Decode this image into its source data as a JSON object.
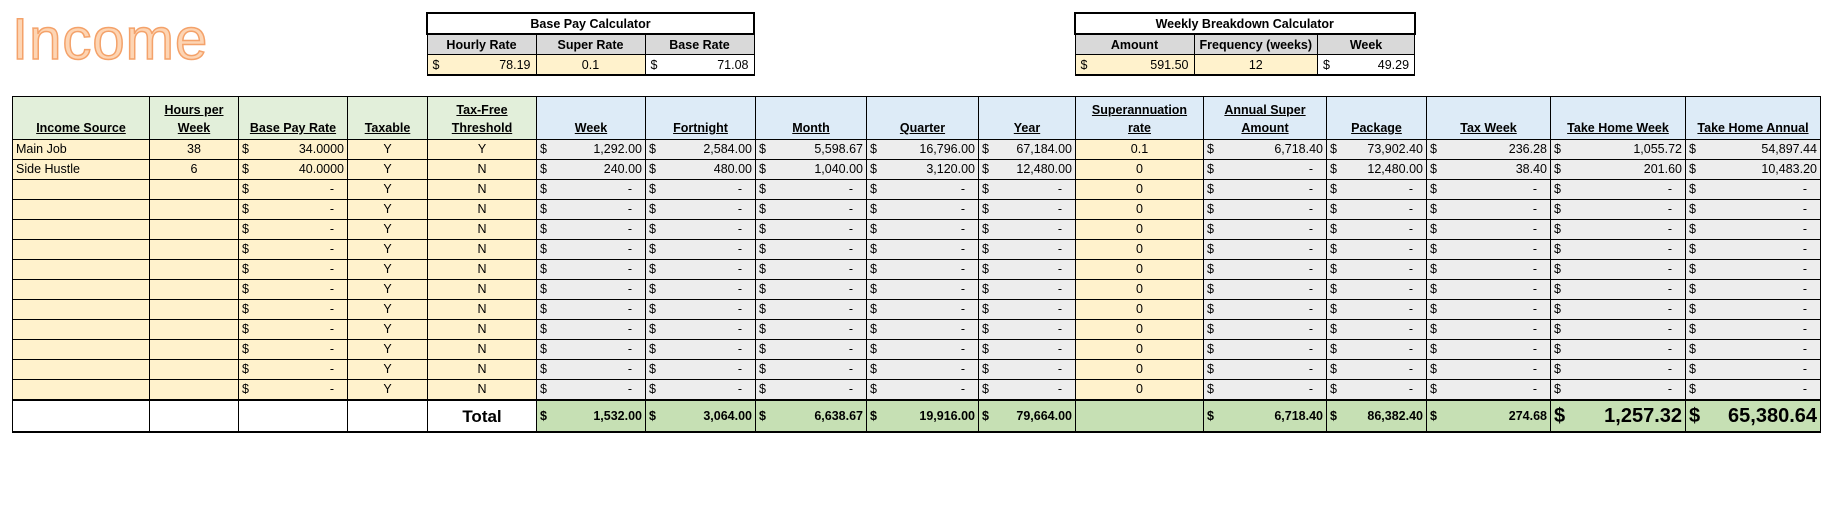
{
  "page_title": "Income",
  "base_pay_calc": {
    "title": "Base Pay Calculator",
    "headers": [
      "Hourly Rate",
      "Super Rate",
      "Base Rate"
    ],
    "hourly_rate": "78.19",
    "super_rate": "0.1",
    "base_rate": "71.08"
  },
  "weekly_calc": {
    "title": "Weekly Breakdown Calculator",
    "headers": [
      "Amount",
      "Frequency (weeks)",
      "Week"
    ],
    "amount": "591.50",
    "frequency": "12",
    "week": "49.29"
  },
  "currency_symbol": "$",
  "table": {
    "headers": [
      "Income Source",
      "Hours per Week",
      "Base Pay Rate",
      "Taxable",
      "Tax-Free Threshold",
      "Week",
      "Fortnight",
      "Month",
      "Quarter",
      "Year",
      "Superannuation rate",
      "Annual Super Amount",
      "Package",
      "Tax Week",
      "Take Home Week",
      "Take Home Annual"
    ],
    "rows": [
      {
        "source": "Main Job",
        "hours": "38",
        "rate": "34.0000",
        "taxable": "Y",
        "tft": "Y",
        "week": "1,292.00",
        "fortnight": "2,584.00",
        "month": "5,598.67",
        "quarter": "16,796.00",
        "year": "67,184.00",
        "super_rate": "0.1",
        "super_amount": "6,718.40",
        "package": "73,902.40",
        "tax_week": "236.28",
        "th_week": "1,055.72",
        "th_annual": "54,897.44"
      },
      {
        "source": "Side Hustle",
        "hours": "6",
        "rate": "40.0000",
        "taxable": "Y",
        "tft": "N",
        "week": "240.00",
        "fortnight": "480.00",
        "month": "1,040.00",
        "quarter": "3,120.00",
        "year": "12,480.00",
        "super_rate": "0",
        "super_amount": "-",
        "package": "12,480.00",
        "tax_week": "38.40",
        "th_week": "201.60",
        "th_annual": "10,483.20"
      },
      {
        "source": "",
        "hours": "",
        "rate": "-",
        "taxable": "Y",
        "tft": "N",
        "week": "-",
        "fortnight": "-",
        "month": "-",
        "quarter": "-",
        "year": "-",
        "super_rate": "0",
        "super_amount": "-",
        "package": "-",
        "tax_week": "-",
        "th_week": "-",
        "th_annual": "-"
      },
      {
        "source": "",
        "hours": "",
        "rate": "-",
        "taxable": "Y",
        "tft": "N",
        "week": "-",
        "fortnight": "-",
        "month": "-",
        "quarter": "-",
        "year": "-",
        "super_rate": "0",
        "super_amount": "-",
        "package": "-",
        "tax_week": "-",
        "th_week": "-",
        "th_annual": "-"
      },
      {
        "source": "",
        "hours": "",
        "rate": "-",
        "taxable": "Y",
        "tft": "N",
        "week": "-",
        "fortnight": "-",
        "month": "-",
        "quarter": "-",
        "year": "-",
        "super_rate": "0",
        "super_amount": "-",
        "package": "-",
        "tax_week": "-",
        "th_week": "-",
        "th_annual": "-"
      },
      {
        "source": "",
        "hours": "",
        "rate": "-",
        "taxable": "Y",
        "tft": "N",
        "week": "-",
        "fortnight": "-",
        "month": "-",
        "quarter": "-",
        "year": "-",
        "super_rate": "0",
        "super_amount": "-",
        "package": "-",
        "tax_week": "-",
        "th_week": "-",
        "th_annual": "-"
      },
      {
        "source": "",
        "hours": "",
        "rate": "-",
        "taxable": "Y",
        "tft": "N",
        "week": "-",
        "fortnight": "-",
        "month": "-",
        "quarter": "-",
        "year": "-",
        "super_rate": "0",
        "super_amount": "-",
        "package": "-",
        "tax_week": "-",
        "th_week": "-",
        "th_annual": "-"
      },
      {
        "source": "",
        "hours": "",
        "rate": "-",
        "taxable": "Y",
        "tft": "N",
        "week": "-",
        "fortnight": "-",
        "month": "-",
        "quarter": "-",
        "year": "-",
        "super_rate": "0",
        "super_amount": "-",
        "package": "-",
        "tax_week": "-",
        "th_week": "-",
        "th_annual": "-"
      },
      {
        "source": "",
        "hours": "",
        "rate": "-",
        "taxable": "Y",
        "tft": "N",
        "week": "-",
        "fortnight": "-",
        "month": "-",
        "quarter": "-",
        "year": "-",
        "super_rate": "0",
        "super_amount": "-",
        "package": "-",
        "tax_week": "-",
        "th_week": "-",
        "th_annual": "-"
      },
      {
        "source": "",
        "hours": "",
        "rate": "-",
        "taxable": "Y",
        "tft": "N",
        "week": "-",
        "fortnight": "-",
        "month": "-",
        "quarter": "-",
        "year": "-",
        "super_rate": "0",
        "super_amount": "-",
        "package": "-",
        "tax_week": "-",
        "th_week": "-",
        "th_annual": "-"
      },
      {
        "source": "",
        "hours": "",
        "rate": "-",
        "taxable": "Y",
        "tft": "N",
        "week": "-",
        "fortnight": "-",
        "month": "-",
        "quarter": "-",
        "year": "-",
        "super_rate": "0",
        "super_amount": "-",
        "package": "-",
        "tax_week": "-",
        "th_week": "-",
        "th_annual": "-"
      },
      {
        "source": "",
        "hours": "",
        "rate": "-",
        "taxable": "Y",
        "tft": "N",
        "week": "-",
        "fortnight": "-",
        "month": "-",
        "quarter": "-",
        "year": "-",
        "super_rate": "0",
        "super_amount": "-",
        "package": "-",
        "tax_week": "-",
        "th_week": "-",
        "th_annual": "-"
      },
      {
        "source": "",
        "hours": "",
        "rate": "-",
        "taxable": "Y",
        "tft": "N",
        "week": "-",
        "fortnight": "-",
        "month": "-",
        "quarter": "-",
        "year": "-",
        "super_rate": "0",
        "super_amount": "-",
        "package": "-",
        "tax_week": "-",
        "th_week": "-",
        "th_annual": "-"
      }
    ],
    "total": {
      "label": "Total",
      "week": "1,532.00",
      "fortnight": "3,064.00",
      "month": "6,638.67",
      "quarter": "19,916.00",
      "year": "79,664.00",
      "super_amount": "6,718.40",
      "package": "86,382.40",
      "tax_week": "274.68",
      "th_week": "1,257.32",
      "th_annual": "65,380.64"
    }
  }
}
